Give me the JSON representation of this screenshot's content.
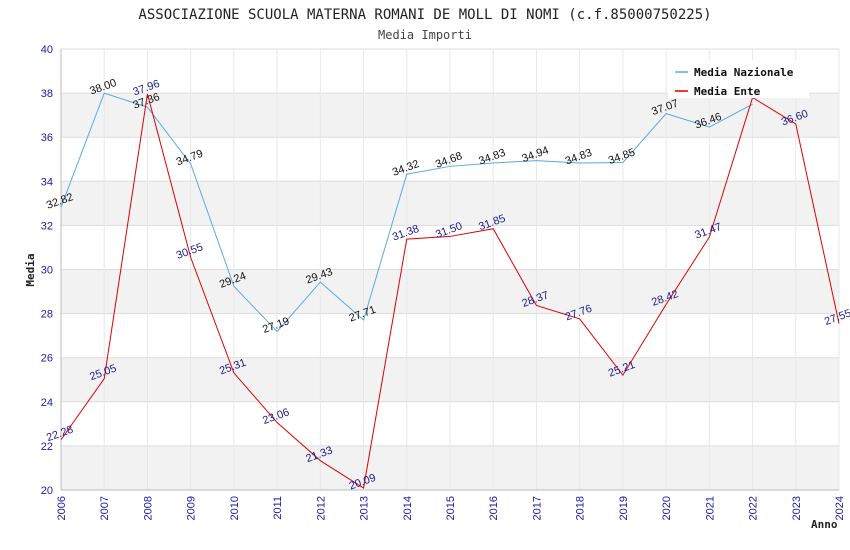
{
  "chart_data": {
    "type": "line",
    "title": "ASSOCIAZIONE SCUOLA MATERNA ROMANI DE MOLL DI NOMI (c.f.85000750225)",
    "subtitle": "Media Importi",
    "xlabel": "Anno",
    "ylabel": "Media",
    "ylim": [
      20,
      40
    ],
    "ytick_step": 2,
    "grid": true,
    "legend_position": "top-right",
    "x": [
      "2006",
      "2007",
      "2008",
      "2009",
      "2010",
      "2011",
      "2012",
      "2013",
      "2014",
      "2015",
      "2016",
      "2017",
      "2018",
      "2019",
      "2020",
      "2021",
      "2022",
      "2023",
      "2024"
    ],
    "series": [
      {
        "name": "Media Nazionale",
        "color": "#5aa9e6",
        "label_color": "#111111",
        "values": [
          32.82,
          38.0,
          37.36,
          34.79,
          29.24,
          27.19,
          29.43,
          27.71,
          34.32,
          34.68,
          34.83,
          34.94,
          34.83,
          34.85,
          37.07,
          36.46,
          37.5,
          null,
          null
        ],
        "labels": [
          "32.82",
          "38.00",
          "37.36",
          "34.79",
          "29.24",
          "27.19",
          "29.43",
          "27.71",
          "34.32",
          "34.68",
          "34.83",
          "34.94",
          "34.83",
          "34.85",
          "37.07",
          "36.46",
          "",
          "",
          ""
        ]
      },
      {
        "name": "Media Ente",
        "color": "#e00000",
        "label_color": "#1a1a8c",
        "values": [
          22.28,
          25.05,
          37.96,
          30.55,
          25.31,
          23.06,
          21.33,
          20.09,
          31.38,
          31.5,
          31.85,
          28.37,
          27.76,
          25.21,
          28.42,
          31.47,
          37.8,
          36.6,
          27.55
        ],
        "labels": [
          "22.28",
          "25.05",
          "37.96",
          "30.55",
          "25.31",
          "23.06",
          "21.33",
          "20.09",
          "31.38",
          "31.50",
          "31.85",
          "28.37",
          "27.76",
          "25.21",
          "28.42",
          "31.47",
          "",
          "36.60",
          "27.55"
        ]
      }
    ]
  }
}
